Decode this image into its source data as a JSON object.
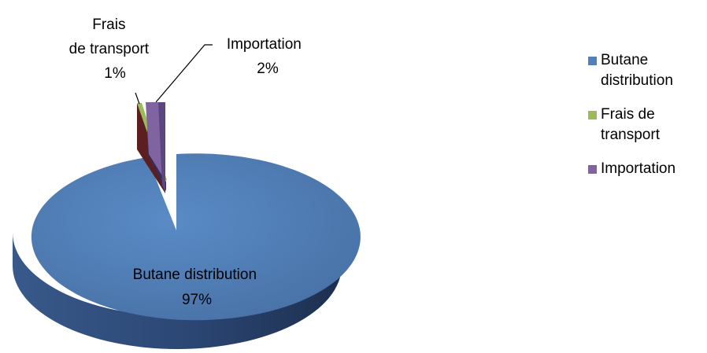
{
  "chart_data": {
    "type": "pie",
    "style": "3d-exploded",
    "title": "",
    "slices": [
      {
        "name": "Butane distribution",
        "percent": 97,
        "percent_label": "97%",
        "color": "#4f81bd",
        "side_color": "#1f3354"
      },
      {
        "name": "Frais de transport",
        "percent": 1,
        "percent_label": "1%",
        "color": "#9bbb59",
        "side_color": "#4a1c1c"
      },
      {
        "name": "Importation",
        "percent": 2,
        "percent_label": "2%",
        "color": "#8064a2",
        "side_color": "#3a2a55"
      }
    ],
    "data_labels": [
      {
        "lines": [
          "Frais",
          "de transport",
          "1%"
        ]
      },
      {
        "lines": [
          "Importation",
          "2%"
        ]
      },
      {
        "lines": [
          "Butane distribution",
          "97%"
        ]
      }
    ],
    "legend": {
      "placement": "right",
      "items": [
        {
          "lines": [
            "Butane",
            "distribution"
          ],
          "color": "#4f81bd"
        },
        {
          "lines": [
            "Frais de",
            "transport"
          ],
          "color": "#9bbb59"
        },
        {
          "lines": [
            "Importation"
          ],
          "color": "#8064a2"
        }
      ]
    }
  }
}
